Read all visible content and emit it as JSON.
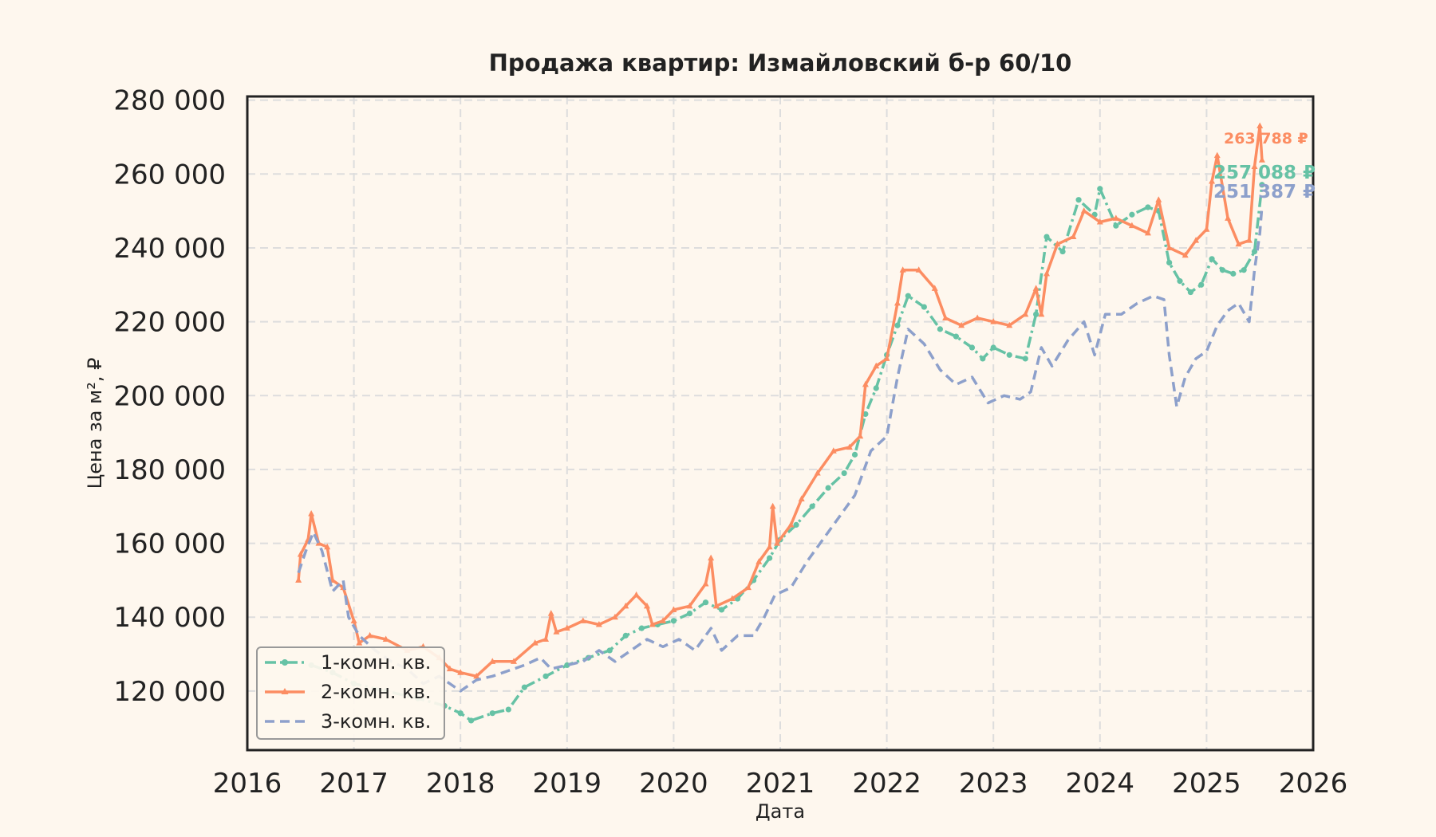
{
  "chart_data": {
    "type": "line",
    "title": "Продажа квартир: Измайловский б-р 60/10",
    "xlabel": "Дата",
    "ylabel": "Цена за м², ₽",
    "xlim": [
      2016.0,
      2026.0
    ],
    "ylim": [
      104000,
      281000
    ],
    "x_ticks": [
      {
        "value": 2016,
        "label": "2016"
      },
      {
        "value": 2017,
        "label": "2017"
      },
      {
        "value": 2018,
        "label": "2018"
      },
      {
        "value": 2019,
        "label": "2019"
      },
      {
        "value": 2020,
        "label": "2020"
      },
      {
        "value": 2021,
        "label": "2021"
      },
      {
        "value": 2022,
        "label": "2022"
      },
      {
        "value": 2023,
        "label": "2023"
      },
      {
        "value": 2024,
        "label": "2024"
      },
      {
        "value": 2025,
        "label": "2025"
      },
      {
        "value": 2026,
        "label": "2026"
      }
    ],
    "y_ticks": [
      {
        "value": 120000,
        "label": "120 000"
      },
      {
        "value": 140000,
        "label": "140 000"
      },
      {
        "value": 160000,
        "label": "160 000"
      },
      {
        "value": 180000,
        "label": "180 000"
      },
      {
        "value": 200000,
        "label": "200 000"
      },
      {
        "value": 220000,
        "label": "220 000"
      },
      {
        "value": 240000,
        "label": "240 000"
      },
      {
        "value": 260000,
        "label": "260 000"
      },
      {
        "value": 280000,
        "label": "280 000"
      }
    ],
    "grid": true,
    "legend_position": "bottom-left",
    "series": [
      {
        "name": "1-комн. кв.",
        "color": "#66c2a5",
        "style": "dashdot",
        "marker": "circle",
        "end_label": "257 088 ₽",
        "points": [
          [
            2016.6,
            127000
          ],
          [
            2016.8,
            125000
          ],
          [
            2017.0,
            122000
          ],
          [
            2017.3,
            120000
          ],
          [
            2017.6,
            118000
          ],
          [
            2017.85,
            116000
          ],
          [
            2018.0,
            114000
          ],
          [
            2018.1,
            112000
          ],
          [
            2018.3,
            114000
          ],
          [
            2018.45,
            115000
          ],
          [
            2018.6,
            121000
          ],
          [
            2018.8,
            124000
          ],
          [
            2019.0,
            127000
          ],
          [
            2019.2,
            129000
          ],
          [
            2019.4,
            131000
          ],
          [
            2019.55,
            135000
          ],
          [
            2019.7,
            137000
          ],
          [
            2019.85,
            138000
          ],
          [
            2020.0,
            139000
          ],
          [
            2020.15,
            141000
          ],
          [
            2020.3,
            144000
          ],
          [
            2020.45,
            142000
          ],
          [
            2020.6,
            145000
          ],
          [
            2020.75,
            150000
          ],
          [
            2020.9,
            156000
          ],
          [
            2021.0,
            161000
          ],
          [
            2021.15,
            165000
          ],
          [
            2021.3,
            170000
          ],
          [
            2021.45,
            175000
          ],
          [
            2021.6,
            179000
          ],
          [
            2021.7,
            184000
          ],
          [
            2021.8,
            195000
          ],
          [
            2021.9,
            202000
          ],
          [
            2022.0,
            211000
          ],
          [
            2022.1,
            219000
          ],
          [
            2022.2,
            227000
          ],
          [
            2022.35,
            224000
          ],
          [
            2022.5,
            218000
          ],
          [
            2022.65,
            216000
          ],
          [
            2022.8,
            213000
          ],
          [
            2022.9,
            210000
          ],
          [
            2023.0,
            213000
          ],
          [
            2023.15,
            211000
          ],
          [
            2023.3,
            210000
          ],
          [
            2023.4,
            222000
          ],
          [
            2023.5,
            243000
          ],
          [
            2023.65,
            239000
          ],
          [
            2023.8,
            253000
          ],
          [
            2023.95,
            249000
          ],
          [
            2024.0,
            256000
          ],
          [
            2024.15,
            246000
          ],
          [
            2024.3,
            249000
          ],
          [
            2024.45,
            251000
          ],
          [
            2024.55,
            250000
          ],
          [
            2024.65,
            236000
          ],
          [
            2024.75,
            231000
          ],
          [
            2024.85,
            228000
          ],
          [
            2024.95,
            230000
          ],
          [
            2025.05,
            237000
          ],
          [
            2025.15,
            234000
          ],
          [
            2025.25,
            233000
          ],
          [
            2025.35,
            234000
          ],
          [
            2025.45,
            239000
          ],
          [
            2025.52,
            257088
          ]
        ]
      },
      {
        "name": "2-комн. кв.",
        "color": "#fc8d62",
        "style": "solid",
        "marker": "triangle",
        "end_label": "263 788 ₽",
        "points": [
          [
            2016.48,
            150000
          ],
          [
            2016.5,
            157000
          ],
          [
            2016.57,
            161000
          ],
          [
            2016.6,
            168000
          ],
          [
            2016.67,
            160000
          ],
          [
            2016.75,
            159000
          ],
          [
            2016.8,
            150000
          ],
          [
            2016.9,
            148000
          ],
          [
            2017.0,
            139000
          ],
          [
            2017.05,
            133000
          ],
          [
            2017.15,
            135000
          ],
          [
            2017.3,
            134000
          ],
          [
            2017.5,
            131000
          ],
          [
            2017.65,
            132000
          ],
          [
            2017.8,
            129000
          ],
          [
            2017.9,
            126000
          ],
          [
            2018.0,
            125000
          ],
          [
            2018.15,
            124000
          ],
          [
            2018.3,
            128000
          ],
          [
            2018.5,
            128000
          ],
          [
            2018.7,
            133000
          ],
          [
            2018.8,
            134000
          ],
          [
            2018.85,
            141000
          ],
          [
            2018.9,
            136000
          ],
          [
            2019.0,
            137000
          ],
          [
            2019.15,
            139000
          ],
          [
            2019.3,
            138000
          ],
          [
            2019.45,
            140000
          ],
          [
            2019.55,
            143000
          ],
          [
            2019.65,
            146000
          ],
          [
            2019.75,
            143000
          ],
          [
            2019.8,
            138000
          ],
          [
            2019.9,
            139000
          ],
          [
            2020.0,
            142000
          ],
          [
            2020.15,
            143000
          ],
          [
            2020.3,
            149000
          ],
          [
            2020.35,
            156000
          ],
          [
            2020.4,
            143000
          ],
          [
            2020.55,
            145000
          ],
          [
            2020.7,
            148000
          ],
          [
            2020.8,
            155000
          ],
          [
            2020.9,
            159000
          ],
          [
            2020.93,
            170000
          ],
          [
            2020.97,
            160000
          ],
          [
            2021.1,
            165000
          ],
          [
            2021.2,
            172000
          ],
          [
            2021.35,
            179000
          ],
          [
            2021.5,
            185000
          ],
          [
            2021.65,
            186000
          ],
          [
            2021.75,
            189000
          ],
          [
            2021.8,
            203000
          ],
          [
            2021.9,
            208000
          ],
          [
            2022.0,
            210000
          ],
          [
            2022.1,
            225000
          ],
          [
            2022.15,
            234000
          ],
          [
            2022.3,
            234000
          ],
          [
            2022.45,
            229000
          ],
          [
            2022.55,
            221000
          ],
          [
            2022.7,
            219000
          ],
          [
            2022.85,
            221000
          ],
          [
            2023.0,
            220000
          ],
          [
            2023.15,
            219000
          ],
          [
            2023.3,
            222000
          ],
          [
            2023.4,
            229000
          ],
          [
            2023.45,
            222000
          ],
          [
            2023.5,
            233000
          ],
          [
            2023.6,
            241000
          ],
          [
            2023.75,
            243000
          ],
          [
            2023.85,
            250000
          ],
          [
            2024.0,
            247000
          ],
          [
            2024.15,
            248000
          ],
          [
            2024.3,
            246000
          ],
          [
            2024.45,
            244000
          ],
          [
            2024.55,
            253000
          ],
          [
            2024.65,
            240000
          ],
          [
            2024.8,
            238000
          ],
          [
            2024.9,
            242000
          ],
          [
            2025.0,
            245000
          ],
          [
            2025.05,
            258000
          ],
          [
            2025.1,
            265000
          ],
          [
            2025.2,
            248000
          ],
          [
            2025.3,
            241000
          ],
          [
            2025.4,
            242000
          ],
          [
            2025.45,
            262000
          ],
          [
            2025.5,
            273000
          ],
          [
            2025.52,
            263788
          ]
        ]
      },
      {
        "name": "3-комн. кв.",
        "color": "#8da0cb",
        "style": "dashed",
        "marker": "none",
        "end_label": "251 387 ₽",
        "points": [
          [
            2016.48,
            152000
          ],
          [
            2016.55,
            158000
          ],
          [
            2016.62,
            163000
          ],
          [
            2016.7,
            158000
          ],
          [
            2016.8,
            147000
          ],
          [
            2016.9,
            150000
          ],
          [
            2016.95,
            140000
          ],
          [
            2017.05,
            135000
          ],
          [
            2017.2,
            131000
          ],
          [
            2017.35,
            128000
          ],
          [
            2017.5,
            126000
          ],
          [
            2017.65,
            122000
          ],
          [
            2017.8,
            124000
          ],
          [
            2018.0,
            120000
          ],
          [
            2018.15,
            123000
          ],
          [
            2018.3,
            124000
          ],
          [
            2018.5,
            126000
          ],
          [
            2018.6,
            127000
          ],
          [
            2018.75,
            129000
          ],
          [
            2018.85,
            126000
          ],
          [
            2019.0,
            127000
          ],
          [
            2019.15,
            128000
          ],
          [
            2019.3,
            131000
          ],
          [
            2019.45,
            128000
          ],
          [
            2019.6,
            131000
          ],
          [
            2019.75,
            134000
          ],
          [
            2019.9,
            132000
          ],
          [
            2020.05,
            134000
          ],
          [
            2020.2,
            131000
          ],
          [
            2020.35,
            137000
          ],
          [
            2020.45,
            131000
          ],
          [
            2020.6,
            135000
          ],
          [
            2020.75,
            135000
          ],
          [
            2020.85,
            140000
          ],
          [
            2020.95,
            146000
          ],
          [
            2021.1,
            148000
          ],
          [
            2021.25,
            155000
          ],
          [
            2021.4,
            161000
          ],
          [
            2021.55,
            167000
          ],
          [
            2021.7,
            173000
          ],
          [
            2021.85,
            185000
          ],
          [
            2022.0,
            189000
          ],
          [
            2022.1,
            205000
          ],
          [
            2022.2,
            218000
          ],
          [
            2022.35,
            214000
          ],
          [
            2022.5,
            207000
          ],
          [
            2022.65,
            203000
          ],
          [
            2022.8,
            205000
          ],
          [
            2022.95,
            198000
          ],
          [
            2023.1,
            200000
          ],
          [
            2023.25,
            199000
          ],
          [
            2023.35,
            201000
          ],
          [
            2023.45,
            213000
          ],
          [
            2023.55,
            208000
          ],
          [
            2023.7,
            215000
          ],
          [
            2023.85,
            220000
          ],
          [
            2023.95,
            211000
          ],
          [
            2024.05,
            222000
          ],
          [
            2024.2,
            222000
          ],
          [
            2024.35,
            225000
          ],
          [
            2024.5,
            227000
          ],
          [
            2024.6,
            226000
          ],
          [
            2024.65,
            211000
          ],
          [
            2024.72,
            197000
          ],
          [
            2024.8,
            205000
          ],
          [
            2024.9,
            210000
          ],
          [
            2025.0,
            212000
          ],
          [
            2025.1,
            219000
          ],
          [
            2025.2,
            223000
          ],
          [
            2025.3,
            225000
          ],
          [
            2025.4,
            220000
          ],
          [
            2025.45,
            234000
          ],
          [
            2025.5,
            244000
          ],
          [
            2025.52,
            251387
          ]
        ]
      }
    ]
  }
}
